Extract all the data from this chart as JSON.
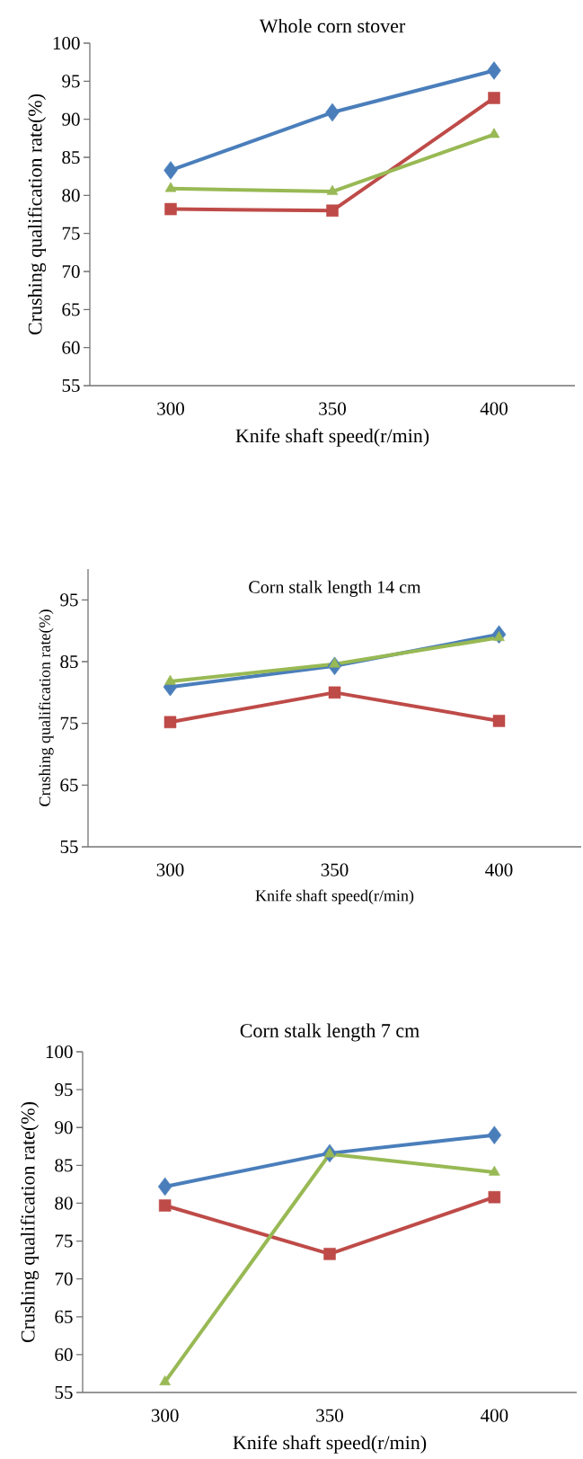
{
  "chart_data": [
    {
      "type": "line",
      "title": "Whole corn stover",
      "xlabel": "Knife shaft speed(r/min)",
      "ylabel": "Crushing qualification rate(%)",
      "categories": [
        "300",
        "350",
        "400"
      ],
      "ylim": [
        55,
        100
      ],
      "yticks": [
        55,
        60,
        65,
        70,
        75,
        80,
        85,
        90,
        95,
        100
      ],
      "series": [
        {
          "color": "#4a7ebb",
          "marker": "diamond",
          "values": [
            83.3,
            90.9,
            96.4
          ]
        },
        {
          "color": "#be4b48",
          "marker": "square",
          "values": [
            78.2,
            78.0,
            92.8
          ]
        },
        {
          "color": "#98b954",
          "marker": "triangle",
          "values": [
            80.9,
            80.5,
            88.0
          ]
        }
      ]
    },
    {
      "type": "line",
      "title": "Corn stalk length 14 cm",
      "xlabel": "Knife shaft speed(r/min)",
      "ylabel": "Crushing qualification rate(%)",
      "categories": [
        "300",
        "350",
        "400"
      ],
      "ylim": [
        55,
        100
      ],
      "yticks": [
        55,
        65,
        75,
        85,
        95
      ],
      "series": [
        {
          "color": "#4a7ebb",
          "marker": "diamond",
          "values": [
            80.9,
            84.3,
            89.4
          ]
        },
        {
          "color": "#be4b48",
          "marker": "square",
          "values": [
            75.2,
            80.0,
            75.4
          ]
        },
        {
          "color": "#98b954",
          "marker": "triangle",
          "values": [
            81.8,
            84.6,
            88.9
          ]
        }
      ]
    },
    {
      "type": "line",
      "title": "Corn stalk length 7 cm",
      "xlabel": "Knife shaft speed(r/min)",
      "ylabel": "Crushing qualification rate(%)",
      "categories": [
        "300",
        "350",
        "400"
      ],
      "ylim": [
        55,
        100
      ],
      "yticks": [
        55,
        60,
        65,
        70,
        75,
        80,
        85,
        90,
        95,
        100
      ],
      "series": [
        {
          "color": "#4a7ebb",
          "marker": "diamond",
          "values": [
            82.2,
            86.6,
            89.0
          ]
        },
        {
          "color": "#be4b48",
          "marker": "square",
          "values": [
            79.7,
            73.3,
            80.8
          ]
        },
        {
          "color": "#98b954",
          "marker": "triangle",
          "values": [
            56.4,
            86.5,
            84.1
          ]
        }
      ]
    }
  ]
}
